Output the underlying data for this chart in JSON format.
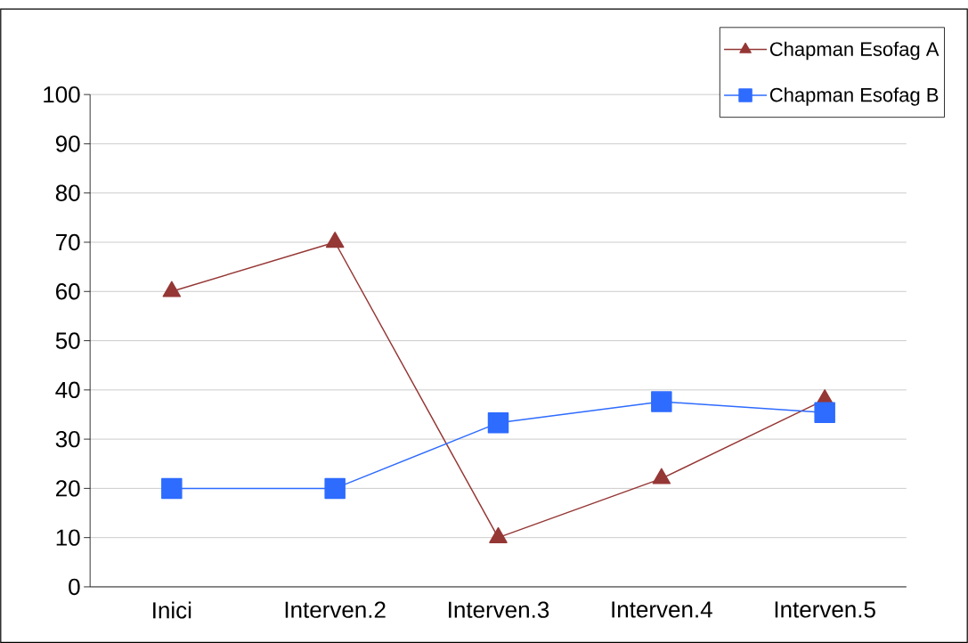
{
  "chart_data": {
    "type": "line",
    "categories": [
      "Inici",
      "Interven.2",
      "Interven.3",
      "Interven.4",
      "Interven.5"
    ],
    "series": [
      {
        "name": "Chapman Esofag A",
        "color": "#953735",
        "marker": "triangle",
        "values": [
          60,
          70,
          10,
          22,
          38
        ]
      },
      {
        "name": "Chapman Esofag B",
        "color": "#2e6bff",
        "marker": "square",
        "values": [
          20,
          20,
          33.3,
          37.6,
          35.4
        ]
      }
    ],
    "ylim": [
      0,
      100
    ],
    "yticks": [
      0,
      10,
      20,
      30,
      40,
      50,
      60,
      70,
      80,
      90,
      100
    ],
    "grid": "y",
    "legend": "top right",
    "line_style": "solid"
  }
}
